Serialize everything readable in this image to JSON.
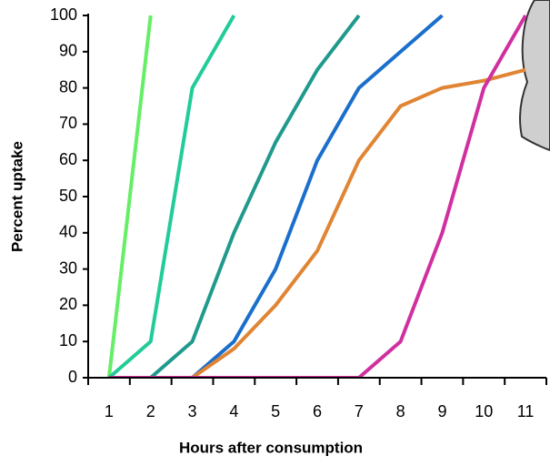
{
  "chart_data": {
    "type": "line",
    "x_label": "Hours after consumption",
    "y_label": "Percent uptake",
    "categories": [
      "1",
      "2",
      "3",
      "4",
      "5",
      "6",
      "7",
      "8",
      "9",
      "10",
      "11"
    ],
    "series": [
      {
        "color": "#66ee66",
        "values": [
          0,
          100,
          null,
          null,
          null,
          null,
          null,
          null,
          null,
          null,
          null
        ]
      },
      {
        "color": "#22cc99",
        "values": [
          0,
          10,
          80,
          100,
          null,
          null,
          null,
          null,
          null,
          null,
          null
        ]
      },
      {
        "color": "#1f9a8c",
        "values": [
          null,
          0,
          10,
          40,
          65,
          85,
          100,
          null,
          null,
          null,
          null
        ]
      },
      {
        "color": "#1a6fcc",
        "values": [
          null,
          null,
          0,
          10,
          30,
          60,
          80,
          90,
          100,
          null,
          null
        ]
      },
      {
        "color": "#e08534",
        "values": [
          0,
          0,
          0,
          8,
          20,
          35,
          60,
          75,
          80,
          82,
          85
        ]
      },
      {
        "color": "#d0309f",
        "values": [
          0,
          0,
          0,
          0,
          0,
          0,
          0,
          10,
          40,
          80,
          100
        ]
      }
    ],
    "ylim": [
      0,
      100
    ],
    "yticks": [
      0,
      10,
      20,
      30,
      40,
      50,
      60,
      70,
      80,
      90,
      100
    ]
  }
}
